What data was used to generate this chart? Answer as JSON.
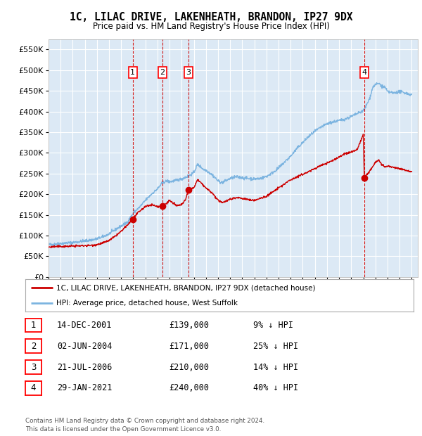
{
  "title": "1C, LILAC DRIVE, LAKENHEATH, BRANDON, IP27 9DX",
  "subtitle": "Price paid vs. HM Land Registry's House Price Index (HPI)",
  "ylim": [
    0,
    575000
  ],
  "yticks": [
    0,
    50000,
    100000,
    150000,
    200000,
    250000,
    300000,
    350000,
    400000,
    450000,
    500000,
    550000
  ],
  "xlim_start": 1995.0,
  "xlim_end": 2025.5,
  "bg_color": "#dce9f5",
  "grid_color": "#ffffff",
  "hpi_color": "#7cb4e0",
  "price_color": "#cc0000",
  "transactions": [
    {
      "num": 1,
      "date_str": "14-DEC-2001",
      "date_x": 2001.96,
      "price": 139000
    },
    {
      "num": 2,
      "date_str": "02-JUN-2004",
      "date_x": 2004.42,
      "price": 171000
    },
    {
      "num": 3,
      "date_str": "21-JUL-2006",
      "date_x": 2006.55,
      "price": 210000
    },
    {
      "num": 4,
      "date_str": "29-JAN-2021",
      "date_x": 2021.08,
      "price": 240000
    }
  ],
  "legend_line1": "1C, LILAC DRIVE, LAKENHEATH, BRANDON, IP27 9DX (detached house)",
  "legend_line2": "HPI: Average price, detached house, West Suffolk",
  "footer1": "Contains HM Land Registry data © Crown copyright and database right 2024.",
  "footer2": "This data is licensed under the Open Government Licence v3.0.",
  "table_rows": [
    [
      "1",
      "14-DEC-2001",
      "£139,000",
      "9% ↓ HPI"
    ],
    [
      "2",
      "02-JUN-2004",
      "£171,000",
      "25% ↓ HPI"
    ],
    [
      "3",
      "21-JUL-2006",
      "£210,000",
      "14% ↓ HPI"
    ],
    [
      "4",
      "29-JAN-2021",
      "£240,000",
      "40% ↓ HPI"
    ]
  ],
  "hpi_anchors": [
    [
      1995.0,
      78000
    ],
    [
      1995.5,
      79000
    ],
    [
      1996.0,
      81000
    ],
    [
      1996.5,
      82000
    ],
    [
      1997.0,
      83000
    ],
    [
      1997.5,
      85000
    ],
    [
      1998.0,
      87000
    ],
    [
      1998.5,
      89000
    ],
    [
      1999.0,
      92000
    ],
    [
      1999.5,
      97000
    ],
    [
      2000.0,
      104000
    ],
    [
      2000.5,
      114000
    ],
    [
      2001.0,
      123000
    ],
    [
      2001.5,
      132000
    ],
    [
      2001.96,
      152000
    ],
    [
      2002.0,
      155000
    ],
    [
      2002.5,
      168000
    ],
    [
      2003.0,
      185000
    ],
    [
      2003.5,
      200000
    ],
    [
      2004.0,
      213000
    ],
    [
      2004.42,
      228000
    ],
    [
      2004.8,
      232000
    ],
    [
      2005.0,
      230000
    ],
    [
      2005.5,
      233000
    ],
    [
      2006.0,
      237000
    ],
    [
      2006.55,
      244000
    ],
    [
      2007.0,
      252000
    ],
    [
      2007.3,
      272000
    ],
    [
      2007.5,
      268000
    ],
    [
      2007.8,
      260000
    ],
    [
      2008.0,
      258000
    ],
    [
      2008.3,
      252000
    ],
    [
      2008.6,
      245000
    ],
    [
      2009.0,
      232000
    ],
    [
      2009.3,
      228000
    ],
    [
      2009.6,
      232000
    ],
    [
      2010.0,
      238000
    ],
    [
      2010.5,
      242000
    ],
    [
      2011.0,
      240000
    ],
    [
      2011.5,
      238000
    ],
    [
      2012.0,
      237000
    ],
    [
      2012.5,
      238000
    ],
    [
      2013.0,
      243000
    ],
    [
      2013.5,
      252000
    ],
    [
      2014.0,
      263000
    ],
    [
      2014.5,
      278000
    ],
    [
      2015.0,
      292000
    ],
    [
      2015.5,
      310000
    ],
    [
      2016.0,
      325000
    ],
    [
      2016.5,
      340000
    ],
    [
      2017.0,
      352000
    ],
    [
      2017.5,
      362000
    ],
    [
      2018.0,
      370000
    ],
    [
      2018.5,
      375000
    ],
    [
      2019.0,
      378000
    ],
    [
      2019.5,
      382000
    ],
    [
      2020.0,
      388000
    ],
    [
      2020.5,
      395000
    ],
    [
      2021.0,
      402000
    ],
    [
      2021.08,
      405000
    ],
    [
      2021.5,
      430000
    ],
    [
      2021.8,
      460000
    ],
    [
      2022.0,
      465000
    ],
    [
      2022.3,
      468000
    ],
    [
      2022.5,
      462000
    ],
    [
      2022.8,
      458000
    ],
    [
      2023.0,
      448000
    ],
    [
      2023.5,
      445000
    ],
    [
      2024.0,
      448000
    ],
    [
      2024.5,
      445000
    ],
    [
      2025.0,
      440000
    ]
  ],
  "price_anchors": [
    [
      1995.0,
      72000
    ],
    [
      1995.5,
      73000
    ],
    [
      1996.0,
      73500
    ],
    [
      1996.5,
      74000
    ],
    [
      1997.0,
      74500
    ],
    [
      1997.5,
      75000
    ],
    [
      1998.0,
      75500
    ],
    [
      1998.5,
      76000
    ],
    [
      1999.0,
      78000
    ],
    [
      1999.5,
      82000
    ],
    [
      2000.0,
      88000
    ],
    [
      2000.5,
      98000
    ],
    [
      2001.0,
      110000
    ],
    [
      2001.5,
      125000
    ],
    [
      2001.96,
      139000
    ],
    [
      2002.0,
      143000
    ],
    [
      2002.5,
      158000
    ],
    [
      2003.0,
      170000
    ],
    [
      2003.5,
      175000
    ],
    [
      2004.0,
      170000
    ],
    [
      2004.42,
      171000
    ],
    [
      2004.6,
      175000
    ],
    [
      2005.0,
      185000
    ],
    [
      2005.3,
      178000
    ],
    [
      2005.6,
      172000
    ],
    [
      2006.0,
      175000
    ],
    [
      2006.3,
      185000
    ],
    [
      2006.55,
      210000
    ],
    [
      2007.0,
      215000
    ],
    [
      2007.3,
      235000
    ],
    [
      2007.5,
      230000
    ],
    [
      2008.0,
      215000
    ],
    [
      2008.3,
      208000
    ],
    [
      2008.6,
      200000
    ],
    [
      2009.0,
      185000
    ],
    [
      2009.3,
      180000
    ],
    [
      2009.6,
      183000
    ],
    [
      2010.0,
      188000
    ],
    [
      2010.5,
      192000
    ],
    [
      2011.0,
      190000
    ],
    [
      2011.5,
      187000
    ],
    [
      2012.0,
      185000
    ],
    [
      2012.5,
      190000
    ],
    [
      2013.0,
      195000
    ],
    [
      2013.5,
      205000
    ],
    [
      2014.0,
      215000
    ],
    [
      2014.5,
      225000
    ],
    [
      2015.0,
      235000
    ],
    [
      2015.5,
      242000
    ],
    [
      2016.0,
      248000
    ],
    [
      2016.5,
      255000
    ],
    [
      2017.0,
      262000
    ],
    [
      2017.5,
      270000
    ],
    [
      2018.0,
      275000
    ],
    [
      2018.5,
      282000
    ],
    [
      2019.0,
      290000
    ],
    [
      2019.5,
      298000
    ],
    [
      2020.0,
      302000
    ],
    [
      2020.5,
      308000
    ],
    [
      2021.0,
      345000
    ],
    [
      2021.08,
      240000
    ],
    [
      2021.5,
      255000
    ],
    [
      2021.8,
      268000
    ],
    [
      2022.0,
      278000
    ],
    [
      2022.3,
      282000
    ],
    [
      2022.5,
      272000
    ],
    [
      2022.8,
      265000
    ],
    [
      2023.0,
      268000
    ],
    [
      2023.5,
      265000
    ],
    [
      2024.0,
      262000
    ],
    [
      2024.5,
      258000
    ],
    [
      2025.0,
      255000
    ]
  ]
}
